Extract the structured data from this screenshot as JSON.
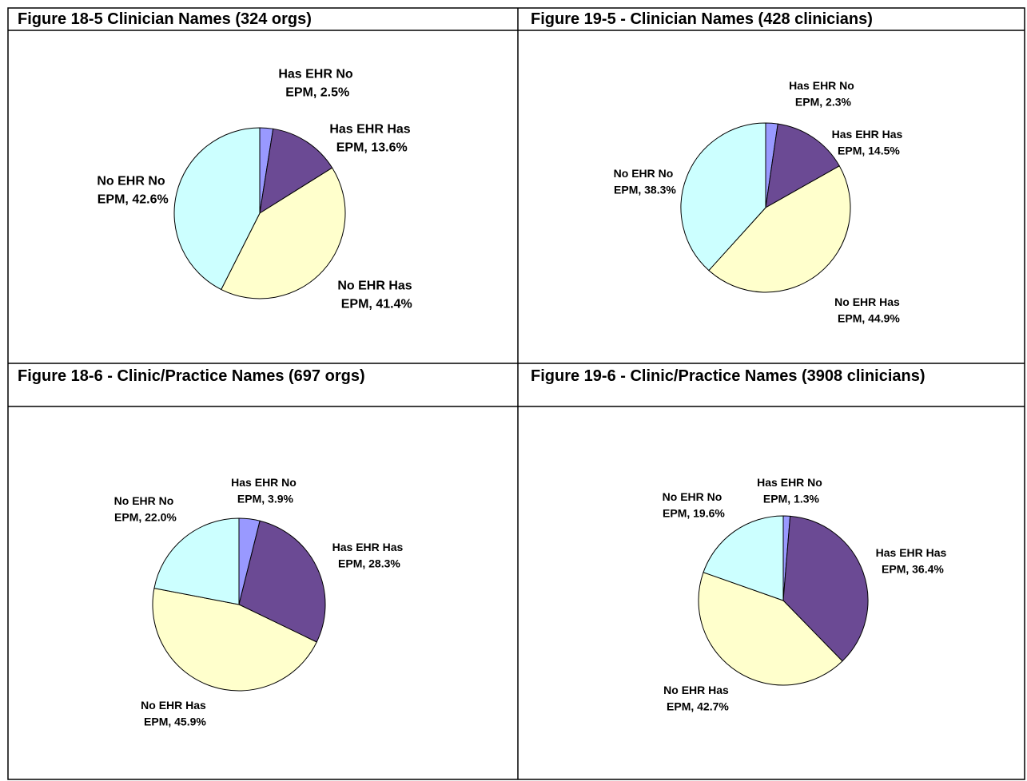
{
  "chart_data": [
    {
      "type": "pie",
      "title": "Figure 18-5 Clinician Names (324 orgs)",
      "values": [
        2.5,
        13.6,
        41.4,
        42.6
      ],
      "value_labels": [
        "Has EHR No EPM, 2.5%",
        "Has EHR Has EPM, 13.6%",
        "No EHR Has EPM, 41.4%",
        "No EHR No EPM, 42.6%"
      ],
      "colors": [
        "#9999ff",
        "#6b4a94",
        "#ffffcc",
        "#ccffff"
      ]
    },
    {
      "type": "pie",
      "title": "Figure 19-5 - Clinician Names (428 clinicians)",
      "values": [
        2.3,
        14.5,
        44.9,
        38.3
      ],
      "value_labels": [
        "Has EHR No EPM, 2.3%",
        "Has EHR Has EPM, 14.5%",
        "No EHR Has EPM, 44.9%",
        "No EHR No EPM, 38.3%"
      ],
      "colors": [
        "#9999ff",
        "#6b4a94",
        "#ffffcc",
        "#ccffff"
      ]
    },
    {
      "type": "pie",
      "title": "Figure 18-6 - Clinic/Practice Names (697 orgs)",
      "values": [
        3.9,
        28.3,
        45.9,
        22.0
      ],
      "value_labels": [
        "Has EHR No EPM, 3.9%",
        "Has EHR Has EPM, 28.3%",
        "No EHR Has EPM, 45.9%",
        "No EHR No EPM, 22.0%"
      ],
      "colors": [
        "#9999ff",
        "#6b4a94",
        "#ffffcc",
        "#ccffff"
      ]
    },
    {
      "type": "pie",
      "title": "Figure 19-6 - Clinic/Practice Names (3908 clinicians)",
      "values": [
        1.3,
        36.4,
        42.7,
        19.6
      ],
      "value_labels": [
        "Has EHR No EPM, 1.3%",
        "Has EHR Has EPM, 36.4%",
        "No EHR Has EPM, 42.7%",
        "No EHR No EPM, 19.6%"
      ],
      "colors": [
        "#9999ff",
        "#6b4a94",
        "#ffffcc",
        "#ccffff"
      ]
    }
  ]
}
